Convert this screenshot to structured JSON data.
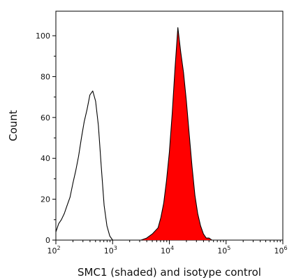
{
  "chart_data": {
    "type": "area",
    "title": "",
    "xlabel": "SMC1 (shaded) and isotype control",
    "ylabel": "Count",
    "x_scale": "log",
    "xlim": [
      100,
      1000000
    ],
    "ylim": [
      0,
      112
    ],
    "x_ticks": [
      100,
      1000,
      10000,
      100000,
      1000000
    ],
    "x_tick_labels": [
      {
        "base": "10",
        "exp": "2"
      },
      {
        "base": "10",
        "exp": "3"
      },
      {
        "base": "10",
        "exp": "4"
      },
      {
        "base": "10",
        "exp": "5"
      },
      {
        "base": "10",
        "exp": "6"
      }
    ],
    "y_ticks": [
      0,
      20,
      40,
      60,
      80,
      100
    ],
    "y_tick_labels": [
      "0",
      "20",
      "40",
      "60",
      "80",
      "100"
    ],
    "grid": false,
    "colors": {
      "smc1_fill": "#ff0000",
      "outline": "#000000"
    },
    "series": [
      {
        "role": "isotype control",
        "style": "outline",
        "x": [
          100,
          112,
          125,
          141,
          158,
          178,
          200,
          224,
          251,
          282,
          316,
          355,
          398,
          447,
          501,
          562,
          631,
          708,
          794,
          891,
          1000,
          1122
        ],
        "y": [
          4,
          8,
          10,
          13,
          17,
          21,
          28,
          34,
          41,
          50,
          58,
          64,
          71,
          73,
          68,
          56,
          36,
          17,
          7,
          2,
          0,
          0
        ]
      },
      {
        "role": "SMC1",
        "style": "shaded",
        "x": [
          3162,
          3981,
          5012,
          6310,
          7079,
          7943,
          8913,
          10000,
          11220,
          12589,
          14125,
          15849,
          17783,
          19953,
          22387,
          25119,
          28184,
          31623,
          35481,
          39811,
          44668,
          50119,
          56234,
          63096
        ],
        "y": [
          0,
          1,
          3,
          6,
          11,
          18,
          29,
          43,
          62,
          84,
          104,
          92,
          82,
          68,
          52,
          36,
          22,
          13,
          7,
          3,
          1,
          1,
          0,
          0
        ]
      }
    ]
  }
}
